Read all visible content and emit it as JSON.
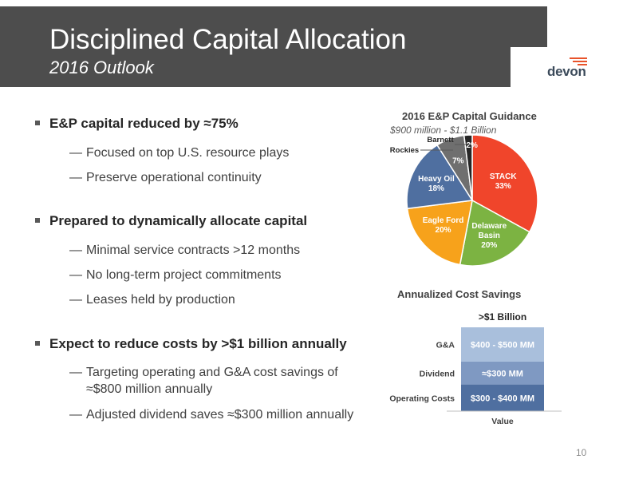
{
  "slide": {
    "title": "Disciplined Capital Allocation",
    "subtitle": "2016 Outlook",
    "logo_text": "devon",
    "page_number": "10"
  },
  "bullets": [
    {
      "text": "E&P capital reduced by ≈75%",
      "subs": [
        "Focused on top U.S. resource plays",
        "Preserve operational continuity"
      ]
    },
    {
      "text": "Prepared to dynamically allocate capital",
      "subs": [
        "Minimal service contracts >12 months",
        "No long-term project commitments",
        "Leases held by production"
      ]
    },
    {
      "text": "Expect to reduce costs by >$1 billion annually",
      "subs": [
        "Targeting operating and G&A cost savings of ≈$800 million annually",
        "Adjusted dividend saves ≈$300 million annually"
      ]
    }
  ],
  "colors": {
    "title_bar": "#4d4d4d",
    "stack": "#f0452b",
    "delaware": "#7cb342",
    "eagle_ford": "#f7a21b",
    "heavy_oil": "#4f6fa0",
    "rockies": "#6f6f6f",
    "barnett": "#262626",
    "logo_accent": "#e8532b"
  },
  "chart_data": [
    {
      "type": "pie",
      "title": "2016 E&P Capital Guidance",
      "subtitle": "$900 million - $1.1 Billion",
      "slices": [
        {
          "label": "STACK",
          "value": 33,
          "value_label": "33%",
          "color": "#f0452b"
        },
        {
          "label": "Delaware Basin",
          "value": 20,
          "value_label": "20%",
          "color": "#7cb342"
        },
        {
          "label": "Eagle Ford",
          "value": 20,
          "value_label": "20%",
          "color": "#f7a21b"
        },
        {
          "label": "Heavy Oil",
          "value": 18,
          "value_label": "18%",
          "color": "#4f6fa0"
        },
        {
          "label": "Rockies",
          "value": 7,
          "value_label": "7%",
          "color": "#6f6f6f"
        },
        {
          "label": "Barnett",
          "value": 2,
          "value_label": "2%",
          "color": "#262626"
        }
      ]
    },
    {
      "type": "bar",
      "title": "Annualized Cost Savings",
      "total_label": ">$1 Billion",
      "xlabel": "Value",
      "segments": [
        {
          "category": "Operating Costs",
          "value_label": "$300 - $400 MM",
          "value": 350,
          "color": "#4f6fa0"
        },
        {
          "category": "Dividend",
          "value_label": "≈$300 MM",
          "value": 300,
          "color": "#7f99c2"
        },
        {
          "category": "G&A",
          "value_label": "$400 - $500 MM",
          "value": 450,
          "color": "#a9bfdc"
        }
      ]
    }
  ]
}
